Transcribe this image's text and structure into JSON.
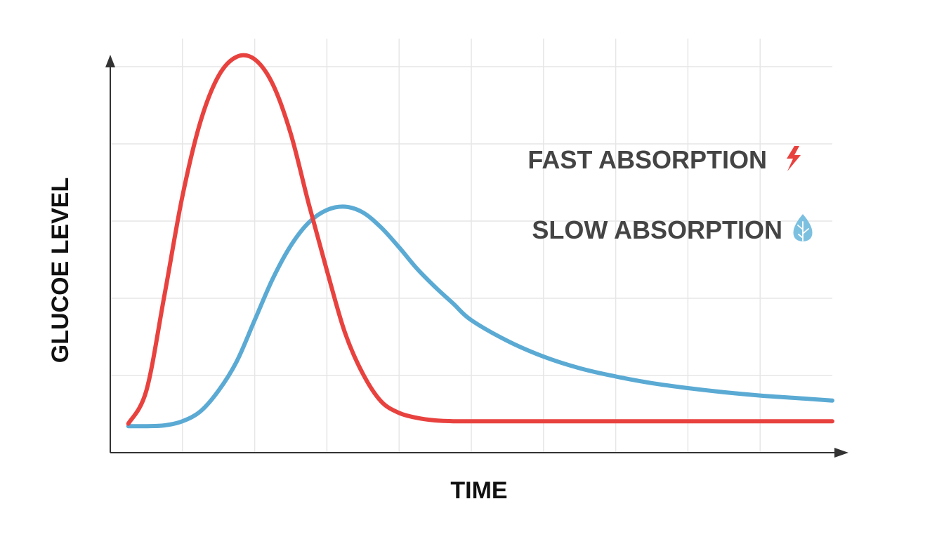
{
  "chart_data": {
    "type": "line",
    "title": "",
    "xlabel": "TIME",
    "ylabel": "GLUCOE LEVEL",
    "xlim": [
      0,
      10
    ],
    "ylim": [
      0,
      5
    ],
    "grid": true,
    "legend_position": "right",
    "series": [
      {
        "name": "FAST ABSORPTION",
        "color": "#e8423f",
        "icon": "lightning-bolt-icon",
        "x": [
          0.25,
          0.5,
          0.75,
          1.0,
          1.25,
          1.5,
          1.75,
          2.0,
          2.25,
          2.5,
          2.75,
          3.0,
          3.25,
          3.5,
          3.75,
          4.0,
          4.25,
          4.5,
          4.75,
          5.0,
          5.5,
          6.0,
          7.0,
          8.0,
          9.0,
          10.0
        ],
        "y": [
          0.35,
          0.75,
          1.9,
          3.1,
          4.0,
          4.55,
          4.78,
          4.75,
          4.45,
          3.85,
          3.0,
          2.2,
          1.45,
          0.95,
          0.62,
          0.48,
          0.42,
          0.39,
          0.38,
          0.38,
          0.38,
          0.38,
          0.38,
          0.38,
          0.38,
          0.38
        ]
      },
      {
        "name": "SLOW ABSORPTION",
        "color": "#5aaad4",
        "icon": "leaf-icon",
        "x": [
          0.25,
          0.5,
          0.75,
          1.0,
          1.25,
          1.5,
          1.75,
          2.0,
          2.25,
          2.5,
          2.75,
          3.0,
          3.25,
          3.5,
          3.75,
          4.0,
          4.25,
          4.5,
          4.75,
          5.0,
          5.5,
          6.0,
          6.5,
          7.0,
          7.5,
          8.0,
          8.5,
          9.0,
          9.5,
          10.0
        ],
        "y": [
          0.32,
          0.32,
          0.33,
          0.38,
          0.5,
          0.75,
          1.1,
          1.6,
          2.1,
          2.5,
          2.78,
          2.93,
          2.97,
          2.9,
          2.72,
          2.48,
          2.22,
          2.0,
          1.8,
          1.6,
          1.35,
          1.16,
          1.02,
          0.92,
          0.84,
          0.78,
          0.73,
          0.69,
          0.66,
          0.63
        ]
      }
    ]
  }
}
